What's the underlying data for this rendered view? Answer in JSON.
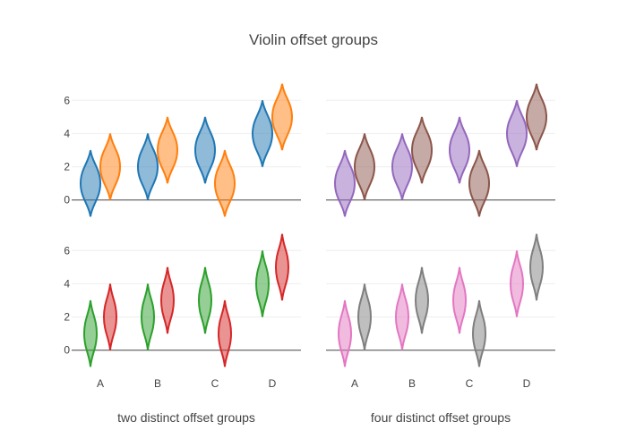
{
  "chart_data": {
    "type": "violin",
    "title": "Violin offset groups",
    "categories": [
      "A",
      "B",
      "C",
      "D"
    ],
    "yticks": [
      0,
      2,
      4,
      6
    ],
    "yrange": [
      -1.2,
      7.2
    ],
    "grid": true,
    "colors": {
      "blue": "#1f77b4",
      "orange": "#ff7f0e",
      "green": "#2ca02c",
      "red": "#d62728",
      "purple": "#9467bd",
      "brown": "#8c564b",
      "pink": "#e377c2",
      "gray": "#7f7f7f"
    },
    "subplots": [
      {
        "id": "top-left",
        "series": [
          {
            "color": "blue",
            "ranges": [
              [
                -1,
                3
              ],
              [
                0,
                4
              ],
              [
                1,
                5
              ],
              [
                2,
                6
              ]
            ]
          },
          {
            "color": "orange",
            "ranges": [
              [
                0,
                4
              ],
              [
                1,
                5
              ],
              [
                -1,
                3
              ],
              [
                3,
                7
              ]
            ]
          }
        ]
      },
      {
        "id": "top-right",
        "series": [
          {
            "color": "purple",
            "ranges": [
              [
                -1,
                3
              ],
              [
                0,
                4
              ],
              [
                1,
                5
              ],
              [
                2,
                6
              ]
            ]
          },
          {
            "color": "brown",
            "ranges": [
              [
                0,
                4
              ],
              [
                1,
                5
              ],
              [
                -1,
                3
              ],
              [
                3,
                7
              ]
            ]
          }
        ]
      },
      {
        "id": "bottom-left",
        "xlabel": "two distinct offset groups",
        "series": [
          {
            "color": "green",
            "ranges": [
              [
                -1,
                3
              ],
              [
                0,
                4
              ],
              [
                1,
                5
              ],
              [
                2,
                6
              ]
            ]
          },
          {
            "color": "red",
            "ranges": [
              [
                0,
                4
              ],
              [
                1,
                5
              ],
              [
                -1,
                3
              ],
              [
                3,
                7
              ]
            ]
          }
        ]
      },
      {
        "id": "bottom-right",
        "xlabel": "four distinct offset groups",
        "series": [
          {
            "color": "pink",
            "ranges": [
              [
                -1,
                3
              ],
              [
                0,
                4
              ],
              [
                1,
                5
              ],
              [
                2,
                6
              ]
            ]
          },
          {
            "color": "gray",
            "ranges": [
              [
                0,
                4
              ],
              [
                1,
                5
              ],
              [
                -1,
                3
              ],
              [
                3,
                7
              ]
            ]
          }
        ]
      }
    ]
  }
}
